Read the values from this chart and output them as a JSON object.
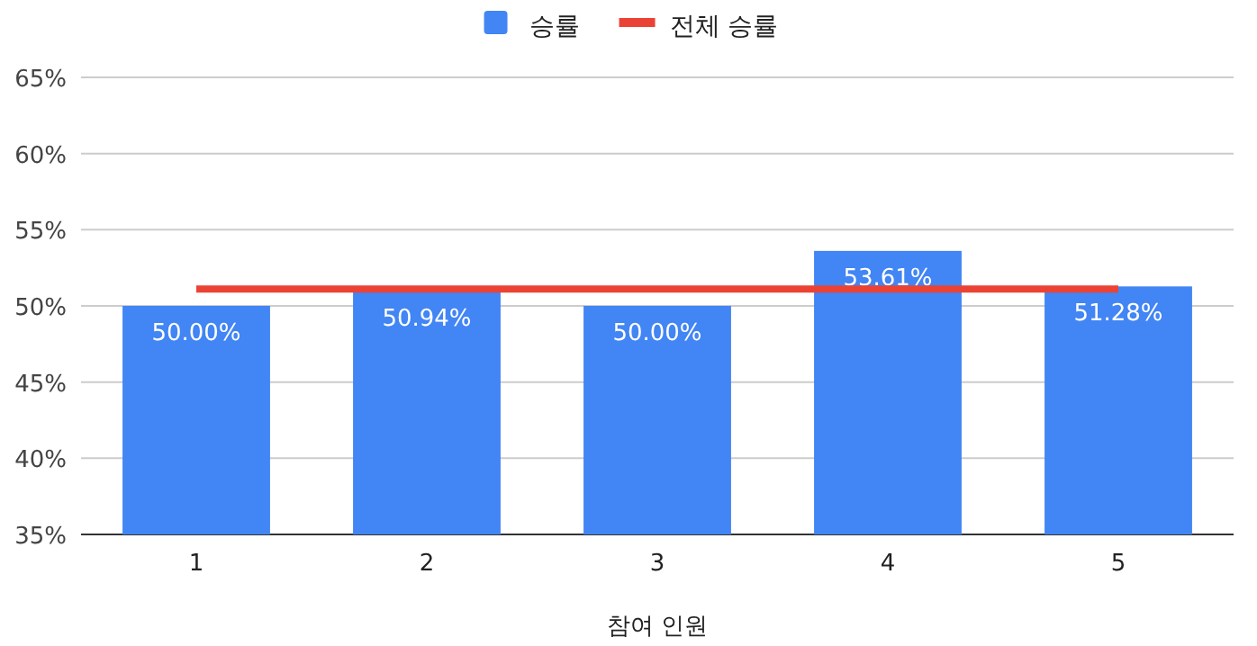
{
  "chart_data": {
    "type": "bar",
    "xlabel": "참여 인원",
    "categories": [
      "1",
      "2",
      "3",
      "4",
      "5"
    ],
    "series": [
      {
        "name": "승률",
        "color": "#4285f4",
        "values": [
          50.0,
          50.94,
          50.0,
          53.61,
          51.28
        ],
        "value_labels": [
          "50.00%",
          "50.94%",
          "50.00%",
          "53.61%",
          "51.28%"
        ]
      },
      {
        "name": "전체 승률",
        "type": "line",
        "color": "#ea4335",
        "values": [
          51.1,
          51.1,
          51.1,
          51.1,
          51.1
        ]
      }
    ],
    "ylim": [
      35,
      65
    ],
    "yticks": [
      {
        "value": 35,
        "label": "35%"
      },
      {
        "value": 40,
        "label": "40%"
      },
      {
        "value": 45,
        "label": "45%"
      },
      {
        "value": 50,
        "label": "50%"
      },
      {
        "value": 55,
        "label": "55%"
      },
      {
        "value": 60,
        "label": "60%"
      },
      {
        "value": 65,
        "label": "65%"
      }
    ],
    "grid": "y",
    "legend": "top"
  }
}
